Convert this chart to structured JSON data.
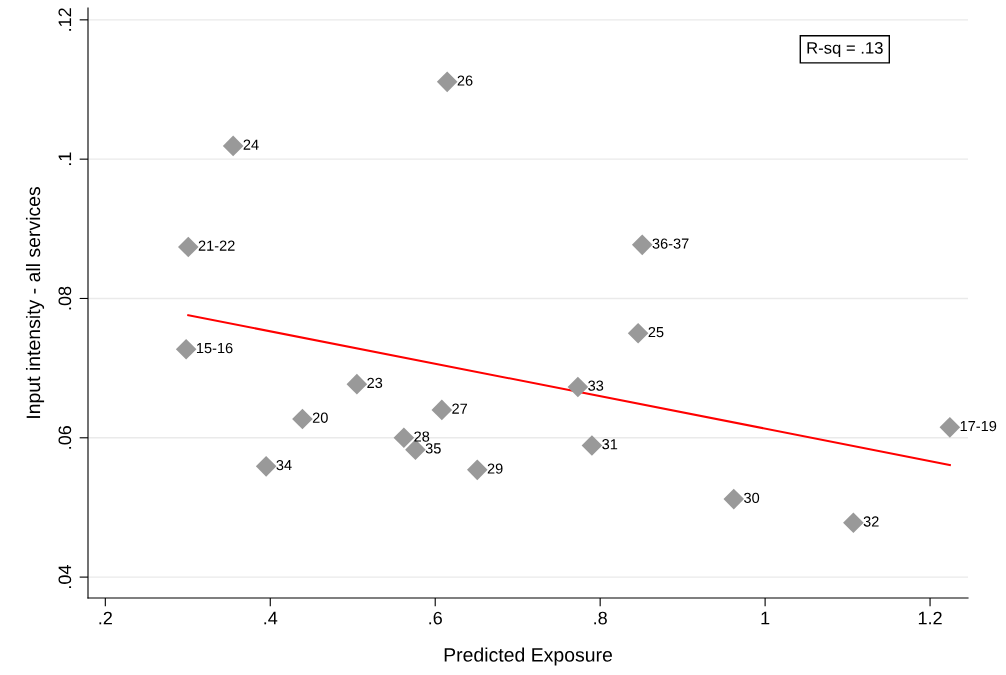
{
  "chart_data": {
    "type": "scatter",
    "xlabel": "Predicted Exposure",
    "ylabel": "Input intensity - all services",
    "series": [
      {
        "color": "#999999",
        "marker": "diamond",
        "x": [
          0.6145,
          0.355,
          0.3006,
          0.851,
          0.846,
          0.298,
          0.505,
          0.773,
          0.608,
          0.439,
          0.562,
          0.576,
          0.79,
          0.395,
          0.651,
          0.962,
          1.107,
          1.224
        ],
        "values": [
          0.1111,
          0.1019,
          0.0874,
          0.0877,
          0.075,
          0.0727,
          0.0677,
          0.0673,
          0.064,
          0.0627,
          0.06,
          0.0583,
          0.0589,
          0.0559,
          0.0554,
          0.0512,
          0.0478,
          0.0615
        ]
      },
      {
        "type": "line",
        "color": "#ff0000",
        "marker": "none",
        "x": [
          0.3006,
          1.224
        ],
        "values": [
          0.0776,
          0.0561
        ]
      }
    ],
    "annotations": [
      {
        "text": "26",
        "x": 0.6145,
        "y": 0.1111
      },
      {
        "text": "24",
        "x": 0.355,
        "y": 0.1019
      },
      {
        "text": "21-22",
        "x": 0.3006,
        "y": 0.0874
      },
      {
        "text": "36-37",
        "x": 0.851,
        "y": 0.0877
      },
      {
        "text": "25",
        "x": 0.846,
        "y": 0.075
      },
      {
        "text": "15-16",
        "x": 0.298,
        "y": 0.0727
      },
      {
        "text": "23",
        "x": 0.505,
        "y": 0.0677
      },
      {
        "text": "33",
        "x": 0.773,
        "y": 0.0673
      },
      {
        "text": "27",
        "x": 0.608,
        "y": 0.064
      },
      {
        "text": "20",
        "x": 0.439,
        "y": 0.0627
      },
      {
        "text": "28",
        "x": 0.562,
        "y": 0.06
      },
      {
        "text": "35",
        "x": 0.576,
        "y": 0.0583
      },
      {
        "text": "31",
        "x": 0.79,
        "y": 0.0589
      },
      {
        "text": "34",
        "x": 0.395,
        "y": 0.0559
      },
      {
        "text": "29",
        "x": 0.651,
        "y": 0.0554
      },
      {
        "text": "30",
        "x": 0.962,
        "y": 0.0512
      },
      {
        "text": "32",
        "x": 1.107,
        "y": 0.0478
      },
      {
        "text": "17-19",
        "x": 1.224,
        "y": 0.0615
      },
      "R-sq = .13"
    ],
    "xlim": [
      0.179,
      1.246
    ],
    "ylim": [
      0.037,
      0.1217
    ],
    "xticks": [
      {
        "value": 0.2,
        "label": ".2"
      },
      {
        "value": 0.4,
        "label": ".4"
      },
      {
        "value": 0.6,
        "label": ".6"
      },
      {
        "value": 0.8,
        "label": ".8"
      },
      1,
      1.2
    ],
    "yticks": [
      {
        "value": 0.04,
        "label": ".04"
      },
      {
        "value": 0.06,
        "label": ".06"
      },
      {
        "value": 0.08,
        "label": ".08"
      },
      {
        "value": 0.1,
        "label": ".1"
      },
      {
        "value": 0.12,
        "label": ".12"
      }
    ],
    "grid": "y",
    "legend": false
  }
}
